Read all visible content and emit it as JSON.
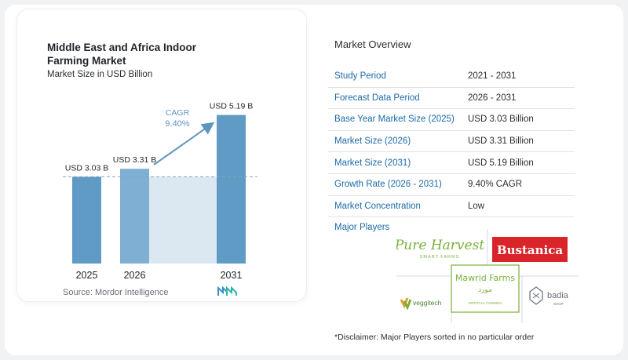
{
  "chart": {
    "title": "Middle East and Africa Indoor Farming Market",
    "subtitle": "Market Size in USD Billion",
    "source": "Source: Mordor Intelligence",
    "cagr_label": "CAGR",
    "cagr_value": "9.40%",
    "colors": {
      "bar": "#5f9bc4",
      "bar_light": "#7fb0d3",
      "shade": "#dbe8f2",
      "arrow": "#5d95c0",
      "cagr_text": "#5d95c0"
    }
  },
  "chart_data": {
    "type": "bar",
    "title": "Middle East and Africa Indoor Farming Market",
    "subtitle": "Market Size in USD Billion",
    "categories": [
      "2025",
      "2026",
      "2031"
    ],
    "values": [
      3.03,
      3.31,
      5.19
    ],
    "data_labels": [
      "USD 3.03 B",
      "USD 3.31 B",
      "USD 5.19 B"
    ],
    "annotation": "CAGR 9.40%",
    "reference_line": 3.03,
    "grid": false,
    "legend": "none"
  },
  "overview": {
    "title": "Market Overview",
    "rows": [
      {
        "label": "Study Period",
        "value": "2021 - 2031"
      },
      {
        "label": "Forecast Data Period",
        "value": "2026 - 2031"
      },
      {
        "label": "Base Year Market Size (2025)",
        "value": "USD 3.03 Billion"
      },
      {
        "label": "Market Size (2026)",
        "value": "USD 3.31 Billion"
      },
      {
        "label": "Market Size (2031)",
        "value": "USD 5.19 Billion"
      },
      {
        "label": "Growth Rate (2026 - 2031)",
        "value": "9.40% CAGR"
      },
      {
        "label": "Market Concentration",
        "value": "Low"
      }
    ],
    "players_title": "Major Players",
    "players": [
      {
        "name": "Pure Harvest",
        "sub": "SMART FARMS"
      },
      {
        "name": "Bustanica"
      },
      {
        "name": "Mawrid Farms",
        "sub": "VERTICAL FARMING"
      },
      {
        "name": "veggitech"
      },
      {
        "name": "badia",
        "sub": "SHOP"
      }
    ],
    "disclaimer": "*Disclaimer: Major Players sorted in no particular order"
  }
}
